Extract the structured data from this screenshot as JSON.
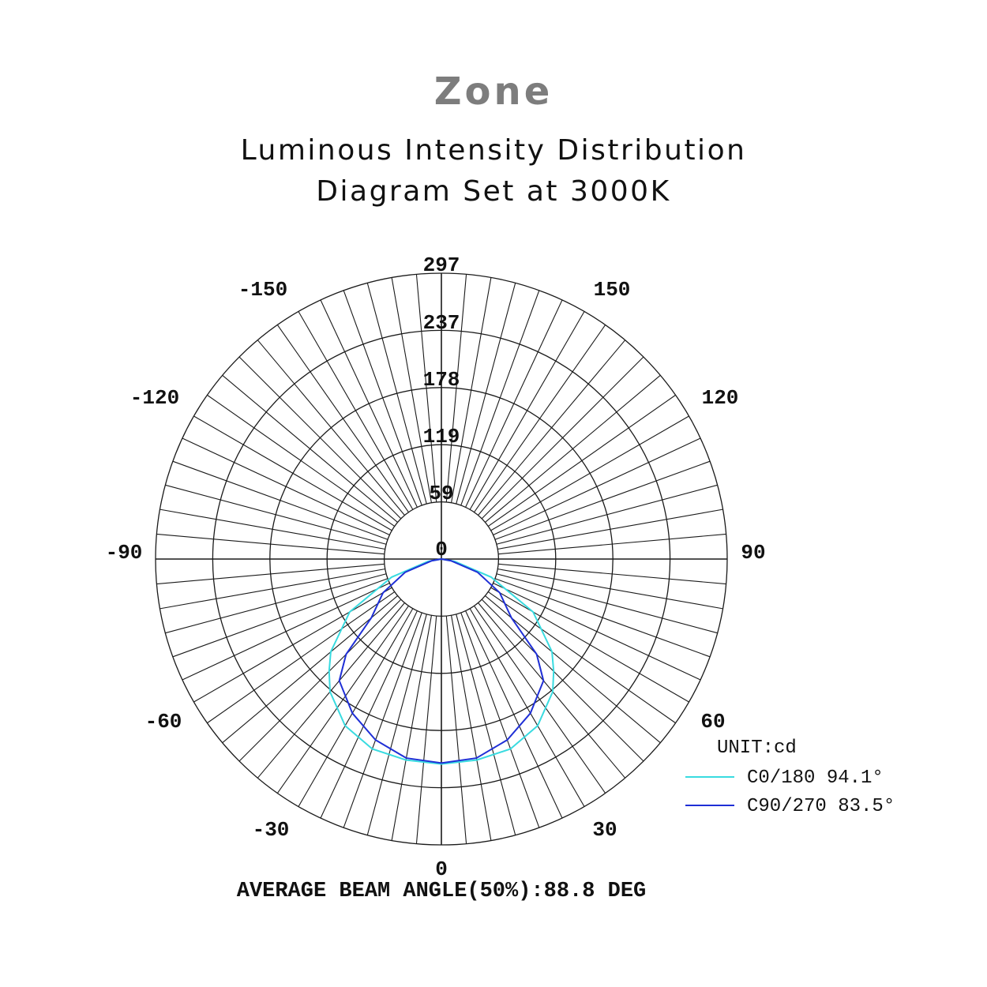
{
  "brand": "Zone",
  "title_lines": [
    "Luminous Intensity Distribution",
    "Diagram Set at 3000K"
  ],
  "colors": {
    "c0": "#39dbe0",
    "c90": "#1f2fd6",
    "grid": "#1a1a1a"
  },
  "chart_data": {
    "type": "polar",
    "radial_max": 297,
    "radial_ticks": [
      "0",
      "59",
      "119",
      "178",
      "237",
      "297"
    ],
    "angle_labels": {
      "top_left": "-150",
      "top_right": "150",
      "upper_left": "-120",
      "upper_right": "120",
      "left": "-90",
      "right": "90",
      "lower_left": "-60",
      "lower_right": "60",
      "bottom_left": "-30",
      "bottom_right": "30",
      "bottom": "0"
    },
    "unit": "UNIT:cd",
    "series": [
      {
        "name": "C0/180 94.1°",
        "color": "#39dbe0",
        "angles": [
          -90,
          -80,
          -70,
          -60,
          -50,
          -45,
          -40,
          -30,
          -20,
          -10,
          0,
          10,
          20,
          30,
          40,
          45,
          50,
          60,
          70,
          80,
          90
        ],
        "values": [
          0,
          14,
          55,
          110,
          150,
          165,
          180,
          200,
          210,
          212,
          213,
          212,
          210,
          200,
          180,
          165,
          150,
          110,
          55,
          14,
          0
        ]
      },
      {
        "name": "C90/270 83.5°",
        "color": "#1f2fd6",
        "angles": [
          -90,
          -80,
          -70,
          -60,
          -50,
          -45,
          -40,
          -30,
          -20,
          -10,
          0,
          10,
          20,
          30,
          40,
          45,
          50,
          60,
          70,
          80,
          90
        ],
        "values": [
          0,
          10,
          40,
          70,
          95,
          140,
          165,
          185,
          200,
          210,
          212,
          210,
          200,
          185,
          165,
          140,
          95,
          70,
          40,
          10,
          0
        ]
      }
    ],
    "footer": "AVERAGE BEAM ANGLE(50%):88.8 DEG"
  }
}
